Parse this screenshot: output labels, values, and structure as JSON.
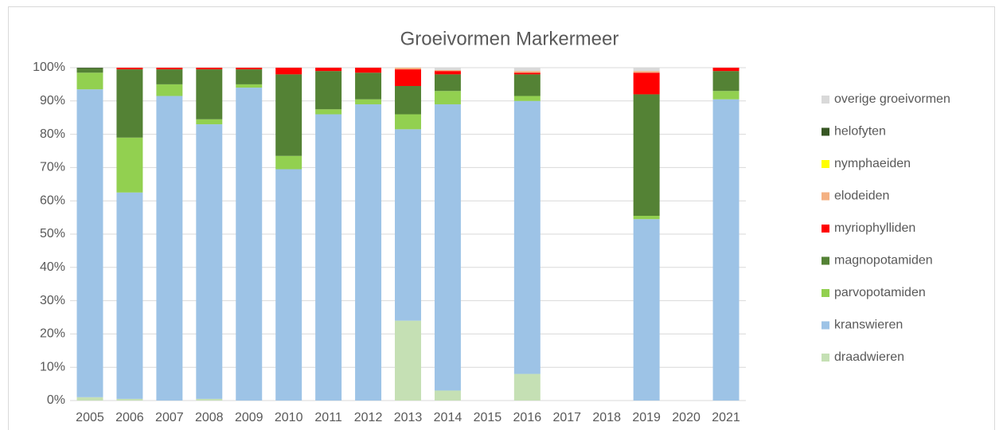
{
  "chart_data": {
    "type": "stacked_bar",
    "title": "Groeivormen Markermeer",
    "categories": [
      "2005",
      "2006",
      "2007",
      "2008",
      "2009",
      "2010",
      "2011",
      "2012",
      "2013",
      "2014",
      "2015",
      "2016",
      "2017",
      "2018",
      "2019",
      "2020",
      "2021"
    ],
    "series": [
      {
        "name": "draadwieren",
        "color": "#c5e0b4",
        "values": [
          1,
          0.5,
          0,
          0.5,
          0,
          0,
          0,
          0,
          24,
          3,
          0,
          8,
          0,
          0,
          0,
          0,
          0
        ]
      },
      {
        "name": "kranswieren",
        "color": "#9dc3e6",
        "values": [
          92.5,
          62,
          91.5,
          82.5,
          94,
          69.5,
          86,
          89,
          57.5,
          86,
          0,
          82,
          0,
          0,
          54.5,
          0,
          90.5
        ]
      },
      {
        "name": "parvopotamiden",
        "color": "#92d050",
        "values": [
          5,
          16.5,
          3.5,
          1.5,
          1,
          4,
          1.5,
          1.5,
          4.5,
          4,
          0,
          1.5,
          0,
          0,
          1,
          0,
          2.5
        ]
      },
      {
        "name": "magnopotamiden",
        "color": "#548235",
        "values": [
          1.3,
          20.5,
          4.5,
          15,
          4.5,
          24.5,
          11.5,
          8,
          8.5,
          5,
          0,
          6.5,
          0,
          0,
          36.5,
          0,
          6
        ]
      },
      {
        "name": "myriophylliden",
        "color": "#ff0000",
        "values": [
          0,
          0.5,
          0.5,
          0.5,
          0.5,
          2,
          1,
          1.5,
          5,
          1,
          0,
          0.5,
          0,
          0,
          6.5,
          0,
          1
        ]
      },
      {
        "name": "elodeiden",
        "color": "#f4b183",
        "values": [
          0,
          0,
          0,
          0,
          0,
          0,
          0,
          0,
          0.5,
          0.3,
          0,
          0.5,
          0,
          0,
          0.5,
          0,
          0
        ]
      },
      {
        "name": "nymphaeiden",
        "color": "#ffff00",
        "values": [
          0,
          0,
          0,
          0,
          0,
          0,
          0,
          0,
          0,
          0,
          0,
          0,
          0,
          0,
          0,
          0,
          0
        ]
      },
      {
        "name": "helofyten",
        "color": "#375623",
        "values": [
          0.2,
          0,
          0,
          0,
          0,
          0,
          0,
          0,
          0,
          0,
          0,
          0,
          0,
          0,
          0,
          0,
          0
        ]
      },
      {
        "name": "overige groeivormen",
        "color": "#d9d9d9",
        "values": [
          0,
          0,
          0,
          0,
          0,
          0,
          0,
          0,
          0,
          0.7,
          0,
          1,
          0,
          0,
          1,
          0,
          0
        ]
      }
    ],
    "ylim": [
      0,
      100
    ],
    "yticks": [
      {
        "value": 0,
        "label": "0%"
      },
      {
        "value": 10,
        "label": "10%"
      },
      {
        "value": 20,
        "label": "20%"
      },
      {
        "value": 30,
        "label": "30%"
      },
      {
        "value": 40,
        "label": "40%"
      },
      {
        "value": 50,
        "label": "50%"
      },
      {
        "value": 60,
        "label": "60%"
      },
      {
        "value": 70,
        "label": "70%"
      },
      {
        "value": 80,
        "label": "80%"
      },
      {
        "value": 90,
        "label": "90%"
      },
      {
        "value": 100,
        "label": "100%"
      }
    ],
    "grid": true,
    "legend": "right"
  }
}
